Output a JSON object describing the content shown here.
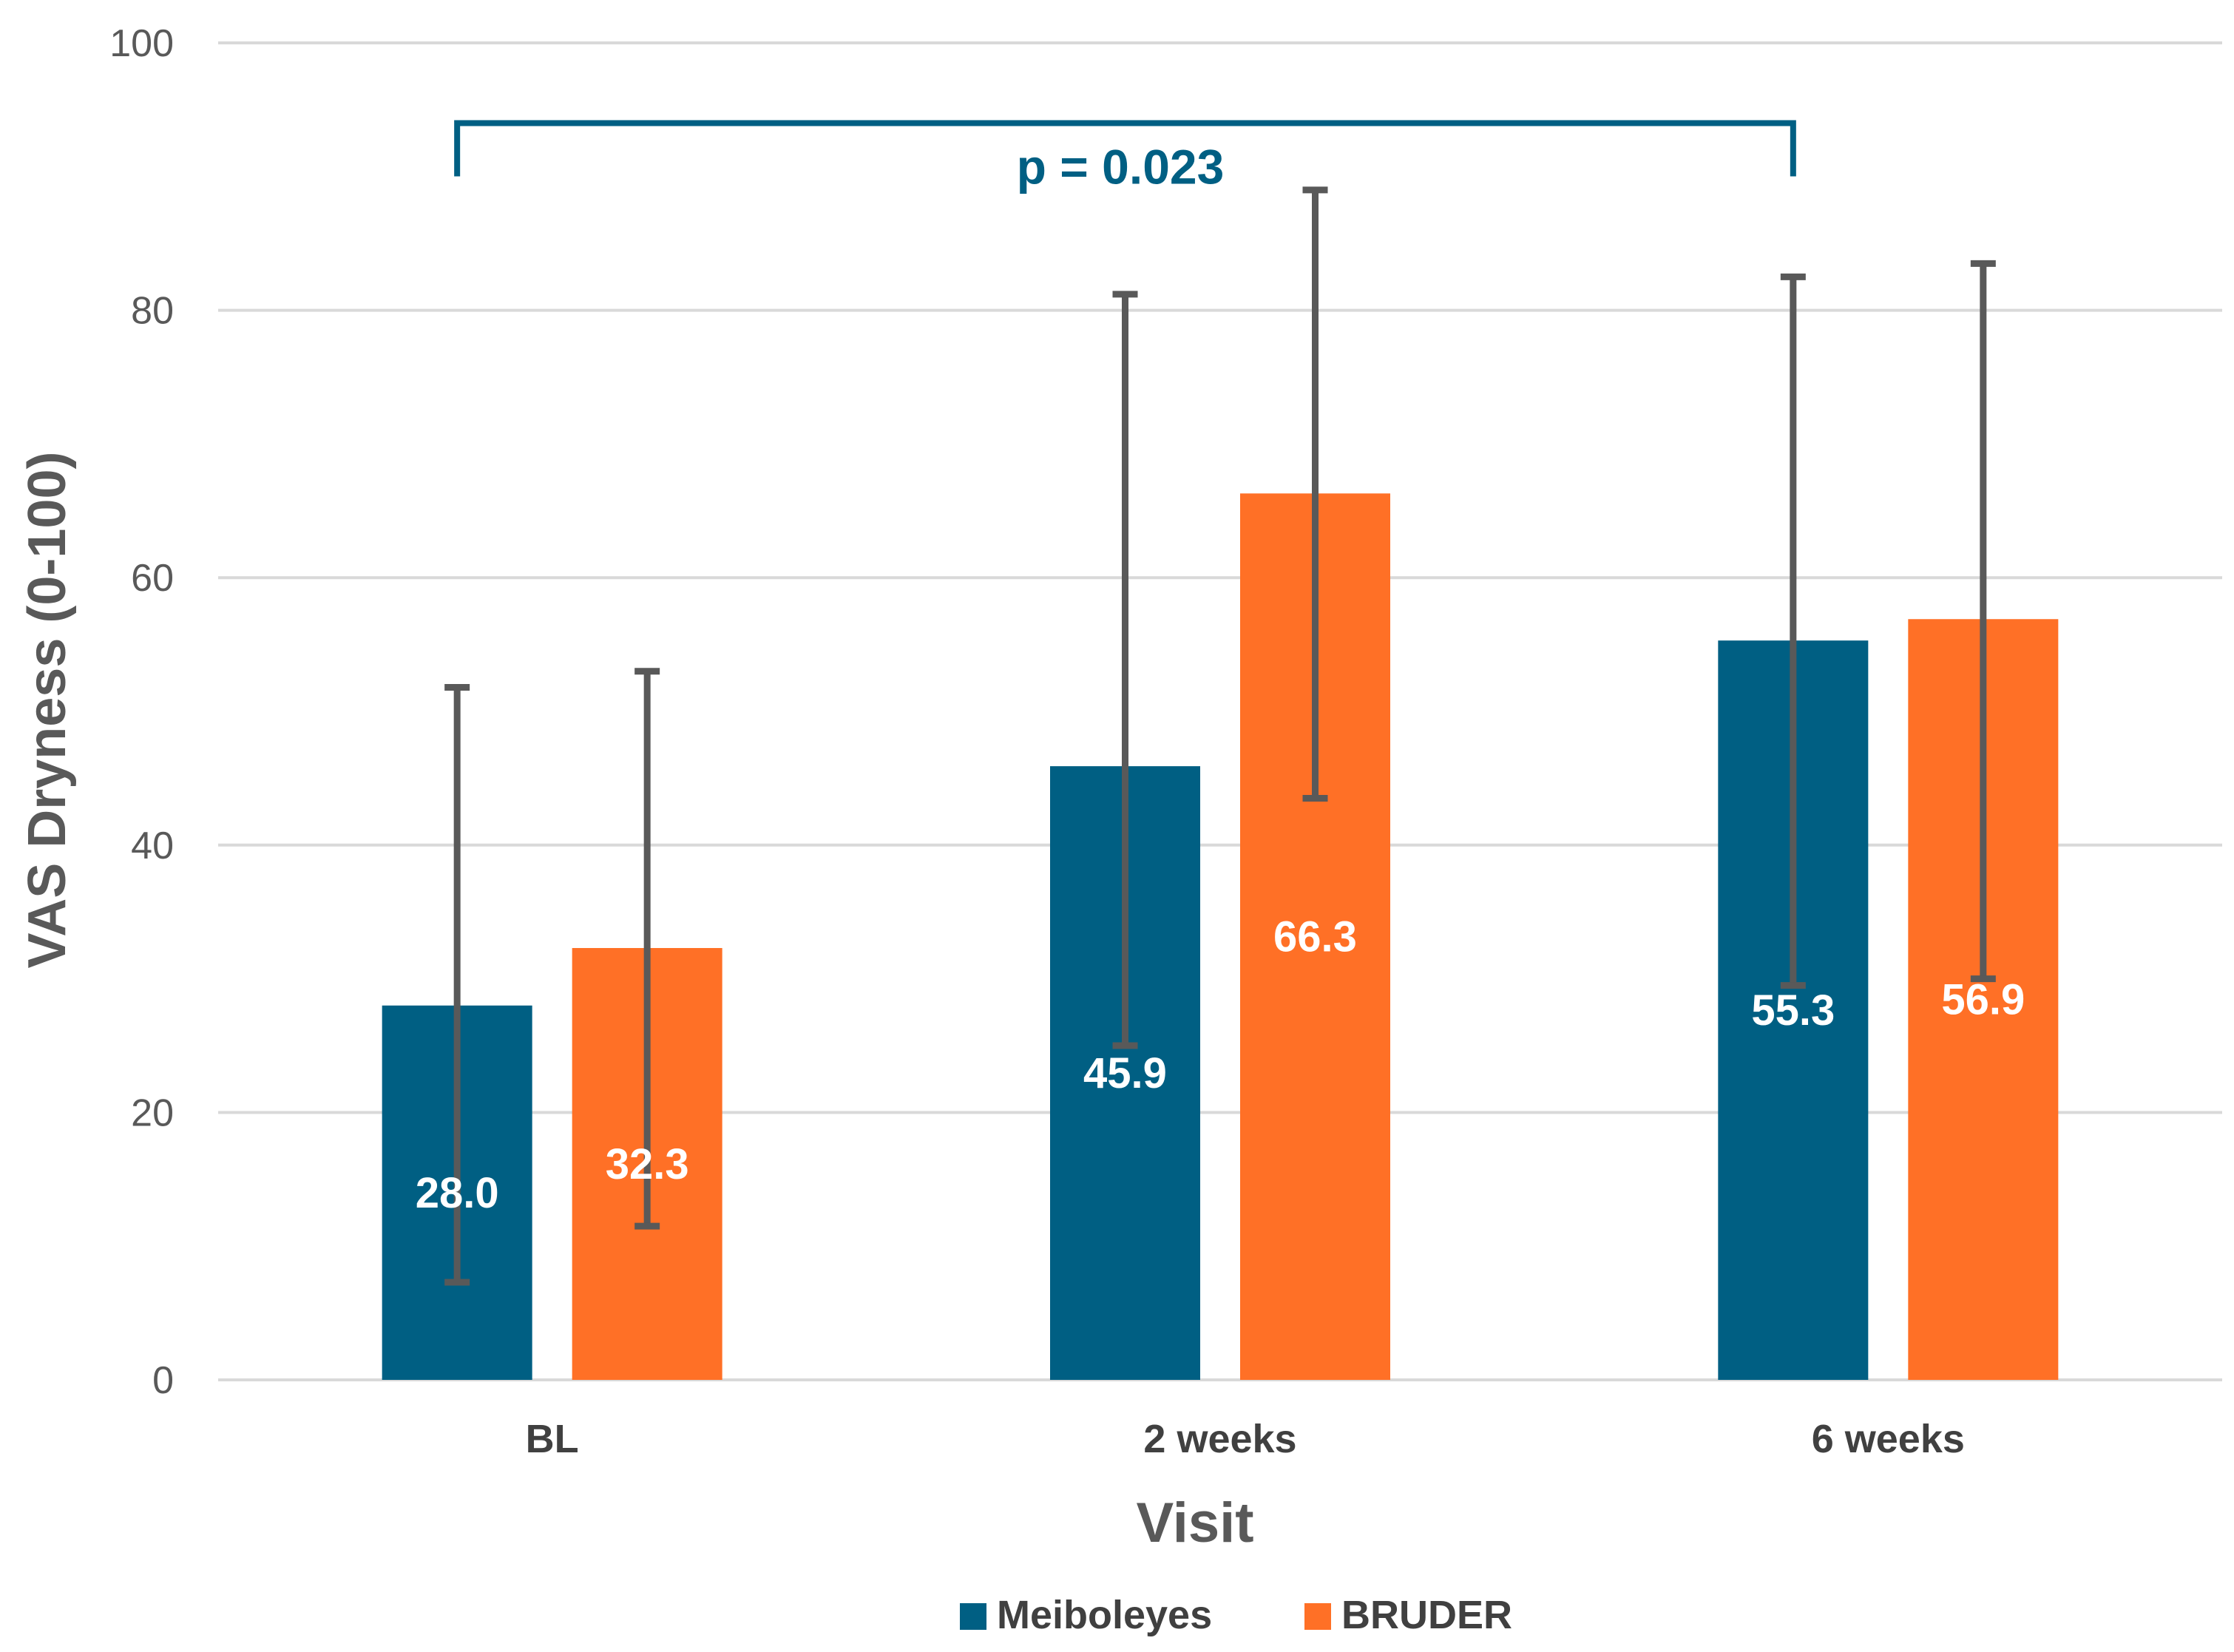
{
  "chart_data": {
    "type": "bar",
    "title": "",
    "xlabel": "Visit",
    "ylabel": "VAS Dryness (0-100)",
    "ylim": [
      0,
      100
    ],
    "yticks": [
      0,
      20,
      40,
      60,
      80,
      100
    ],
    "grid": true,
    "legend": "bottom-center",
    "categories": [
      "BL",
      "2 weeks",
      "6 weeks"
    ],
    "series": [
      {
        "name": "Meiboleyes",
        "color": "#005F83",
        "values": [
          28.0,
          45.9,
          55.3
        ],
        "labels": [
          "28.0",
          "45.9",
          "55.3"
        ],
        "error_low": [
          7.3,
          25.0,
          29.5
        ],
        "error_high": [
          51.8,
          81.2,
          82.5
        ]
      },
      {
        "name": "BRUDER",
        "color": "#FF7026",
        "values": [
          32.3,
          66.3,
          56.9
        ],
        "labels": [
          "32.3",
          "66.3",
          "56.9"
        ],
        "error_low": [
          11.5,
          43.5,
          30.0
        ],
        "error_high": [
          53.0,
          89.0,
          83.5
        ]
      }
    ],
    "annotation": {
      "text": "p = 0.023",
      "from_category": 0,
      "to_category": 2,
      "y": 94,
      "color": "#005F83"
    },
    "error_bar_color": "#595959"
  }
}
